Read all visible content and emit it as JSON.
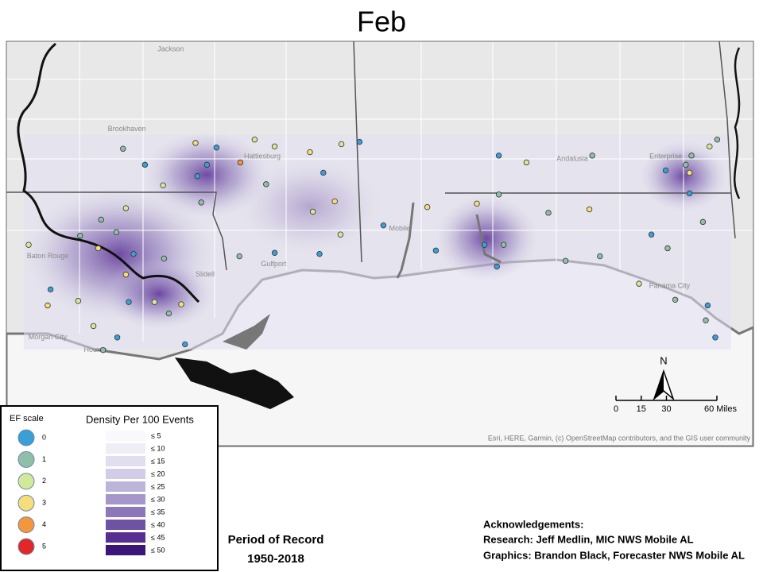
{
  "title": "Feb",
  "map": {
    "extent": {
      "lon": [
        -92.4,
        -84.4
      ],
      "lat": [
        28,
        33
      ]
    },
    "places": [
      {
        "name": "Jackson",
        "lon": -90.61,
        "lat": 32.57
      },
      {
        "name": "Brookhaven",
        "lon": -91.07,
        "lat": 31.87
      },
      {
        "name": "Hattiesburg",
        "lon": -89.65,
        "lat": 31.63
      },
      {
        "name": "Baton Rouge",
        "lon": -91.9,
        "lat": 30.76
      },
      {
        "name": "Slidell",
        "lon": -90.25,
        "lat": 30.6
      },
      {
        "name": "Gulfport",
        "lon": -89.53,
        "lat": 30.69
      },
      {
        "name": "Mobile",
        "lon": -88.21,
        "lat": 31.0
      },
      {
        "name": "Andalusia",
        "lon": -86.4,
        "lat": 31.61
      },
      {
        "name": "Enterprise",
        "lon": -85.42,
        "lat": 31.63
      },
      {
        "name": "Panama City",
        "lon": -85.38,
        "lat": 30.5
      },
      {
        "name": "Morgan City",
        "lon": -91.9,
        "lat": 30.05
      },
      {
        "name": "Houma",
        "lon": -91.4,
        "lat": 29.94
      }
    ],
    "events": [
      {
        "lon": -91.11,
        "lat": 31.7,
        "ef": 1
      },
      {
        "lon": -90.88,
        "lat": 31.56,
        "ef": 0
      },
      {
        "lon": -90.35,
        "lat": 31.75,
        "ef": 3
      },
      {
        "lon": -90.13,
        "lat": 31.71,
        "ef": 0
      },
      {
        "lon": -89.88,
        "lat": 31.58,
        "ef": 4
      },
      {
        "lon": -89.73,
        "lat": 31.78,
        "ef": 2
      },
      {
        "lon": -90.23,
        "lat": 31.56,
        "ef": 0
      },
      {
        "lon": -90.33,
        "lat": 31.46,
        "ef": 0
      },
      {
        "lon": -90.69,
        "lat": 31.38,
        "ef": 2
      },
      {
        "lon": -89.52,
        "lat": 31.72,
        "ef": 2
      },
      {
        "lon": -89.15,
        "lat": 31.67,
        "ef": 3
      },
      {
        "lon": -89.01,
        "lat": 31.49,
        "ef": 0
      },
      {
        "lon": -88.82,
        "lat": 31.74,
        "ef": 2
      },
      {
        "lon": -88.63,
        "lat": 31.76,
        "ef": 0
      },
      {
        "lon": -89.61,
        "lat": 31.39,
        "ef": 1
      },
      {
        "lon": -88.89,
        "lat": 31.24,
        "ef": 3
      },
      {
        "lon": -89.12,
        "lat": 31.15,
        "ef": 2
      },
      {
        "lon": -90.29,
        "lat": 31.23,
        "ef": 1
      },
      {
        "lon": -91.08,
        "lat": 31.18,
        "ef": 2
      },
      {
        "lon": -91.34,
        "lat": 31.08,
        "ef": 1
      },
      {
        "lon": -91.18,
        "lat": 30.97,
        "ef": 1
      },
      {
        "lon": -91.56,
        "lat": 30.94,
        "ef": 1
      },
      {
        "lon": -91.37,
        "lat": 30.83,
        "ef": 3
      },
      {
        "lon": -91.0,
        "lat": 30.78,
        "ef": 0
      },
      {
        "lon": -91.08,
        "lat": 30.6,
        "ef": 3
      },
      {
        "lon": -90.68,
        "lat": 30.74,
        "ef": 1
      },
      {
        "lon": -92.1,
        "lat": 30.86,
        "ef": 2
      },
      {
        "lon": -91.87,
        "lat": 30.47,
        "ef": 0
      },
      {
        "lon": -91.9,
        "lat": 30.33,
        "ef": 3
      },
      {
        "lon": -91.58,
        "lat": 30.37,
        "ef": 2
      },
      {
        "lon": -91.05,
        "lat": 30.36,
        "ef": 0
      },
      {
        "lon": -90.78,
        "lat": 30.36,
        "ef": 2
      },
      {
        "lon": -90.5,
        "lat": 30.34,
        "ef": 3
      },
      {
        "lon": -90.63,
        "lat": 30.26,
        "ef": 1
      },
      {
        "lon": -91.42,
        "lat": 30.15,
        "ef": 2
      },
      {
        "lon": -91.17,
        "lat": 30.05,
        "ef": 0
      },
      {
        "lon": -91.32,
        "lat": 29.94,
        "ef": 1
      },
      {
        "lon": -90.46,
        "lat": 29.99,
        "ef": 0
      },
      {
        "lon": -89.89,
        "lat": 30.76,
        "ef": 1
      },
      {
        "lon": -89.52,
        "lat": 30.79,
        "ef": 0
      },
      {
        "lon": -89.05,
        "lat": 30.78,
        "ef": 0
      },
      {
        "lon": -88.83,
        "lat": 30.95,
        "ef": 2
      },
      {
        "lon": -88.38,
        "lat": 31.03,
        "ef": 0
      },
      {
        "lon": -87.92,
        "lat": 31.19,
        "ef": 3
      },
      {
        "lon": -87.83,
        "lat": 30.81,
        "ef": 0
      },
      {
        "lon": -87.4,
        "lat": 31.22,
        "ef": 3
      },
      {
        "lon": -87.17,
        "lat": 31.3,
        "ef": 1
      },
      {
        "lon": -87.32,
        "lat": 30.86,
        "ef": 0
      },
      {
        "lon": -87.19,
        "lat": 30.67,
        "ef": 0
      },
      {
        "lon": -87.12,
        "lat": 30.86,
        "ef": 1
      },
      {
        "lon": -87.17,
        "lat": 31.64,
        "ef": 0
      },
      {
        "lon": -86.88,
        "lat": 31.58,
        "ef": 2
      },
      {
        "lon": -86.19,
        "lat": 31.64,
        "ef": 1
      },
      {
        "lon": -86.65,
        "lat": 31.14,
        "ef": 1
      },
      {
        "lon": -86.22,
        "lat": 31.17,
        "ef": 3
      },
      {
        "lon": -86.47,
        "lat": 30.72,
        "ef": 1
      },
      {
        "lon": -86.11,
        "lat": 30.76,
        "ef": 1
      },
      {
        "lon": -85.42,
        "lat": 31.51,
        "ef": 0
      },
      {
        "lon": -85.21,
        "lat": 31.56,
        "ef": 1
      },
      {
        "lon": -85.17,
        "lat": 31.49,
        "ef": 3
      },
      {
        "lon": -84.96,
        "lat": 31.72,
        "ef": 2
      },
      {
        "lon": -84.88,
        "lat": 31.78,
        "ef": 1
      },
      {
        "lon": -85.17,
        "lat": 31.31,
        "ef": 0
      },
      {
        "lon": -85.03,
        "lat": 31.06,
        "ef": 1
      },
      {
        "lon": -85.57,
        "lat": 30.95,
        "ef": 0
      },
      {
        "lon": -85.4,
        "lat": 30.83,
        "ef": 1
      },
      {
        "lon": -85.7,
        "lat": 30.52,
        "ef": 2
      },
      {
        "lon": -85.32,
        "lat": 30.38,
        "ef": 1
      },
      {
        "lon": -84.98,
        "lat": 30.33,
        "ef": 0
      },
      {
        "lon": -85.0,
        "lat": 30.2,
        "ef": 1
      },
      {
        "lon": -84.9,
        "lat": 30.05,
        "ef": 0
      },
      {
        "lon": -85.15,
        "lat": 31.64,
        "ef": 1
      }
    ]
  },
  "ef_scale": {
    "title": "EF scale",
    "levels": [
      0,
      1,
      2,
      3,
      4,
      5
    ],
    "colors": [
      "#3a9fd6",
      "#8fbfa8",
      "#d4e89a",
      "#f4dd7a",
      "#f4963e",
      "#e3262a"
    ]
  },
  "density_legend": {
    "title": "Density Per 100 Events",
    "classes": [
      {
        "label": "≤ 5",
        "color": "#f9f8fc"
      },
      {
        "label": "≤ 10",
        "color": "#efedf6"
      },
      {
        "label": "≤ 15",
        "color": "#e2def0"
      },
      {
        "label": "≤ 20",
        "color": "#d2cce6"
      },
      {
        "label": "≤ 25",
        "color": "#bdb4d9"
      },
      {
        "label": "≤ 30",
        "color": "#a597c9"
      },
      {
        "label": "≤ 35",
        "color": "#8c77b8"
      },
      {
        "label": "≤ 40",
        "color": "#6f53a3"
      },
      {
        "label": "≤ 45",
        "color": "#572f92"
      },
      {
        "label": "≤ 50",
        "color": "#3b1578"
      }
    ]
  },
  "scale_bar": {
    "ticks": [
      0,
      15,
      30,
      {
        "value": 60,
        "label": "60 Miles"
      }
    ]
  },
  "north": "N",
  "attribution": "Esri, HERE, Garmin, (c) OpenStreetMap contributors, and the GIS user community",
  "period": {
    "title": "Period of Record",
    "years": "1950-2018"
  },
  "acknowledgements": [
    "Acknowledgements:",
    "Research: Jeff Medlin, MIC NWS Mobile AL",
    "Graphics: Brandon Black, Forecaster NWS Mobile AL"
  ]
}
